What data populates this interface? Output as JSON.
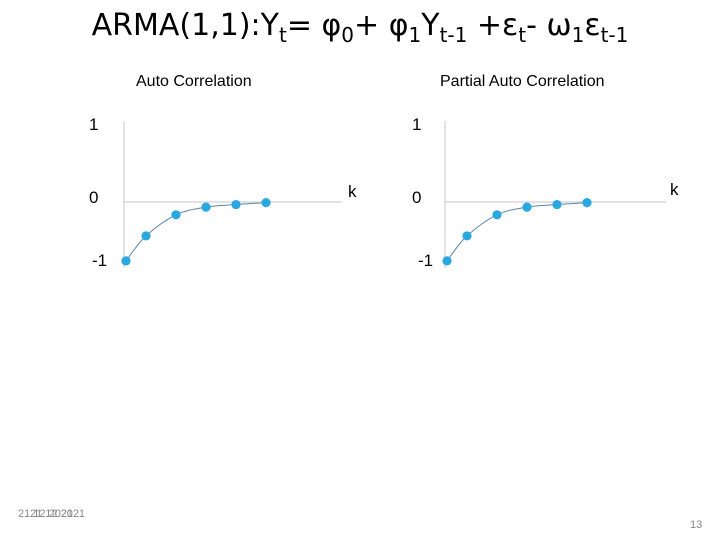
{
  "slide": {
    "title_parts": [
      "ARMA(1,1):Y",
      "t",
      "= ",
      "φ",
      "0",
      "+ ",
      "φ",
      "1",
      "Y",
      "t-1",
      " +ε",
      "t",
      "- ",
      "ω",
      "1",
      "ε",
      "t-1"
    ],
    "date_text": "21.12.2021",
    "date_ghost": "21.12.2021",
    "page_number": "13"
  },
  "chart_data": [
    {
      "type": "scatter",
      "title": "Auto Correlation",
      "xlabel": "k",
      "ylabel": "",
      "y_ticks": [
        "1",
        "0",
        "-1"
      ],
      "ylim": [
        -1,
        1
      ],
      "x": [
        1,
        2,
        3,
        4,
        5,
        6
      ],
      "values": [
        -0.92,
        -0.53,
        -0.2,
        -0.08,
        -0.04,
        -0.01
      ],
      "point_color": "#29a8e0",
      "curve_color": "#5a86b0"
    },
    {
      "type": "scatter",
      "title": "Partial Auto Correlation",
      "xlabel": "k",
      "ylabel": "",
      "y_ticks": [
        "1",
        "0",
        "-1"
      ],
      "ylim": [
        -1,
        1
      ],
      "x": [
        1,
        2,
        3,
        4,
        5,
        6
      ],
      "values": [
        -0.92,
        -0.53,
        -0.2,
        -0.08,
        -0.04,
        -0.01
      ],
      "point_color": "#29a8e0",
      "curve_color": "#5a86b0"
    }
  ]
}
